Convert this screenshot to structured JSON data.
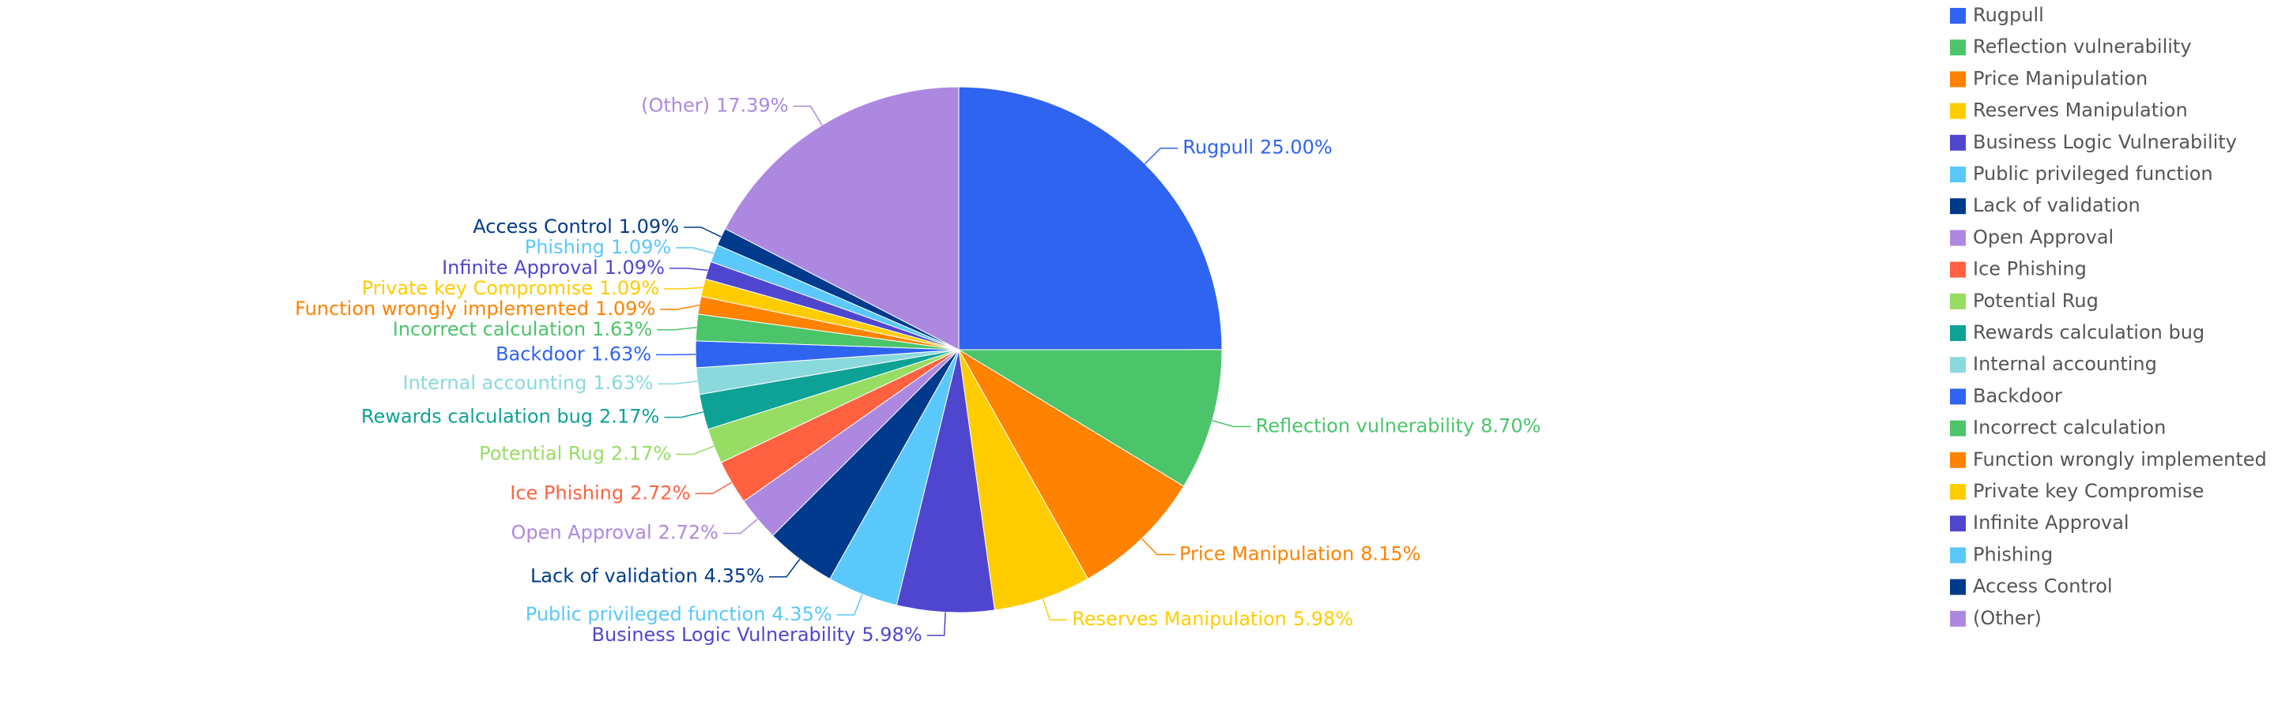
{
  "chart_data": {
    "type": "pie",
    "categories": [
      "Rugpull",
      "Reflection vulnerability",
      "Price Manipulation",
      "Reserves Manipulation",
      "Business Logic Vulnerability",
      "Public privileged function",
      "Lack of validation",
      "Open Approval",
      "Ice Phishing",
      "Potential Rug",
      "Rewards calculation bug",
      "Internal accounting",
      "Backdoor",
      "Incorrect calculation",
      "Function wrongly implemented",
      "Private key Compromise",
      "Infinite Approval",
      "Phishing",
      "Access Control",
      "(Other)"
    ],
    "values": [
      25.0,
      8.7,
      8.15,
      5.98,
      5.98,
      4.35,
      4.35,
      2.72,
      2.72,
      2.17,
      2.17,
      1.63,
      1.63,
      1.63,
      1.09,
      1.09,
      1.09,
      1.09,
      1.09,
      17.39
    ],
    "value_labels": [
      "25.00%",
      "8.70%",
      "8.15%",
      "5.98%",
      "5.98%",
      "4.35%",
      "4.35%",
      "2.72%",
      "2.72%",
      "2.17%",
      "2.17%",
      "1.63%",
      "1.63%",
      "1.63%",
      "1.09%",
      "1.09%",
      "1.09%",
      "1.09%",
      "1.09%",
      "17.39%"
    ],
    "colors": [
      "#2f64f0",
      "#4cc46a",
      "#ff8200",
      "#ffcc00",
      "#4f46d0",
      "#5ac8fa",
      "#003a8c",
      "#ad88e0",
      "#ff6141",
      "#97dd63",
      "#0da295",
      "#8ad9dd",
      "#2f64f0",
      "#4cc46a",
      "#ff8200",
      "#ffcc00",
      "#4f46d0",
      "#5ac8fa",
      "#003a8c",
      "#ad88e0"
    ],
    "legend": "right"
  }
}
